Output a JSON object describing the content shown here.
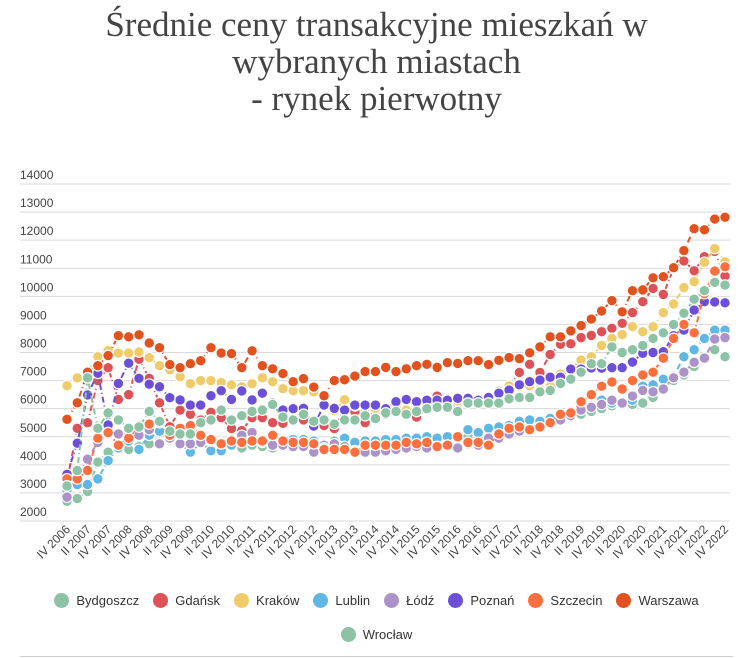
{
  "chart_data": {
    "type": "line",
    "title": [
      "Średnie ceny transakcyjne mieszkań w",
      "wybranych miastach",
      "- rynek pierwotny"
    ],
    "xlabel": "",
    "ylabel": "",
    "ylim": [
      2000,
      14000
    ],
    "yticks": [
      14000,
      13000,
      12000,
      11000,
      10000,
      9000,
      8000,
      7000,
      6000,
      5000,
      4000,
      3000,
      2000
    ],
    "xtick_labels": [
      "IV 2006",
      "II 2007",
      "IV 2007",
      "II 2008",
      "IV 2008",
      "II 2009",
      "IV 2009",
      "II 2010",
      "IV 2010",
      "II 2011",
      "IV 2011",
      "II 2012",
      "IV 2012",
      "II 2013",
      "IV 2013",
      "II 2014",
      "IV 2014",
      "II 2015",
      "IV 2015",
      "II 2016",
      "IV 2016",
      "II 2017",
      "IV 2017",
      "II 2018",
      "IV 2018",
      "II 2019",
      "IV 2019",
      "II 2020",
      "IV 2020",
      "II 2021",
      "IV 2021",
      "II 2022",
      "IV 2022"
    ],
    "x_note": "quarterly points from IV 2006 to IV 2022",
    "grid": true,
    "legend_position": "bottom",
    "series": [
      {
        "name": "Bydgoszcz",
        "color": "#8cc3a5",
        "values": [
          2700,
          2800,
          3050,
          4100,
          4450,
          4600,
          4550,
          4650,
          4750,
          4800,
          4850,
          4800,
          4700,
          4800,
          4850,
          4800,
          4700,
          4600,
          4700,
          4650,
          4600,
          4700,
          4650,
          4700,
          4700,
          4750,
          4850,
          4800,
          4850,
          4700,
          4750,
          4800,
          4800,
          4850,
          4850,
          4900,
          4900,
          4950,
          4950,
          5000,
          5000,
          5000,
          5050,
          5100,
          5200,
          5300,
          5400,
          5500,
          5600,
          5700,
          5800,
          5900,
          6000,
          6100,
          6100,
          6150,
          6200,
          6400,
          6700,
          7000,
          7200,
          7500,
          7800,
          8100,
          7850
        ]
      },
      {
        "name": "Gdańsk",
        "color": "#dd5257",
        "values": [
          3400,
          5300,
          5500,
          7000,
          7460,
          6330,
          6500,
          7760,
          7080,
          6210,
          5360,
          5950,
          5800,
          5600,
          5870,
          5680,
          5290,
          5220,
          5680,
          5680,
          5500,
          5480,
          5600,
          5600,
          5500,
          5400,
          5290,
          6000,
          5900,
          5500,
          5900,
          5800,
          5900,
          5800,
          5700,
          6000,
          6450,
          6200,
          6200,
          6200,
          6300,
          6400,
          6600,
          6800,
          7290,
          7580,
          7290,
          7930,
          8290,
          8310,
          8530,
          8610,
          8740,
          8860,
          9040,
          9420,
          9810,
          10280,
          10070,
          10990,
          11260,
          10910,
          11410,
          11600,
          10720
        ]
      },
      {
        "name": "Kraków",
        "color": "#f0cb69",
        "values": [
          6820,
          7100,
          7300,
          7850,
          8070,
          7980,
          7980,
          8020,
          7820,
          7530,
          7390,
          7140,
          6890,
          7000,
          7000,
          6930,
          6850,
          6780,
          6890,
          7100,
          6960,
          6710,
          6640,
          6640,
          6600,
          6400,
          5930,
          6320,
          6100,
          6000,
          6000,
          5950,
          6050,
          5950,
          5900,
          6100,
          6150,
          6200,
          6280,
          6280,
          6250,
          6200,
          6620,
          6810,
          6790,
          6820,
          6700,
          6800,
          7230,
          7410,
          7730,
          7850,
          8250,
          8500,
          8640,
          8920,
          8740,
          8920,
          9420,
          9730,
          10310,
          10520,
          11210,
          11700,
          11230
        ]
      },
      {
        "name": "Lublin",
        "color": "#5fb7e5",
        "values": [
          3100,
          3300,
          3300,
          3500,
          4150,
          4600,
          4850,
          4550,
          5050,
          5200,
          4900,
          4750,
          4450,
          4800,
          4500,
          4500,
          4700,
          4800,
          4850,
          4800,
          4700,
          4650,
          4900,
          4900,
          4850,
          4700,
          4700,
          4950,
          4800,
          4850,
          4850,
          4900,
          4900,
          4950,
          4950,
          5000,
          4950,
          5000,
          5000,
          5250,
          5150,
          5300,
          5350,
          5400,
          5550,
          5600,
          5550,
          5650,
          5800,
          5900,
          6000,
          6100,
          6300,
          6200,
          6150,
          6300,
          6800,
          6850,
          7050,
          7150,
          7850,
          8100,
          8500,
          8800,
          8800
        ]
      },
      {
        "name": "Łódź",
        "color": "#ab92c9",
        "values": [
          2850,
          3600,
          4200,
          4800,
          5100,
          5100,
          5050,
          5050,
          5250,
          4750,
          4950,
          4750,
          4750,
          4800,
          4850,
          4750,
          4900,
          5050,
          5150,
          4900,
          4700,
          4700,
          4650,
          4650,
          4450,
          4600,
          4750,
          4650,
          4500,
          4450,
          4450,
          4500,
          4550,
          4600,
          4650,
          4600,
          4650,
          4700,
          4600,
          4750,
          4700,
          4950,
          4950,
          5100,
          5200,
          5250,
          5350,
          5450,
          5600,
          5750,
          5950,
          6050,
          6150,
          6300,
          6200,
          6450,
          6650,
          6600,
          6700,
          7100,
          7300,
          7650,
          7800,
          8480,
          8530
        ]
      },
      {
        "name": "Poznań",
        "color": "#6b4fd8",
        "values": [
          3660,
          4770,
          6490,
          7260,
          5420,
          6900,
          7620,
          7080,
          6870,
          6780,
          6390,
          6310,
          6130,
          6130,
          6460,
          6640,
          6330,
          6630,
          6310,
          6550,
          6210,
          5950,
          6000,
          6010,
          5380,
          6130,
          6010,
          5950,
          6130,
          6130,
          6130,
          6000,
          6250,
          6330,
          6250,
          6300,
          6300,
          6300,
          6370,
          6370,
          6300,
          6400,
          6550,
          6660,
          6850,
          6960,
          7020,
          7120,
          7120,
          7410,
          7410,
          7450,
          7440,
          7460,
          7460,
          7660,
          7970,
          8000,
          8030,
          8600,
          8800,
          9510,
          9810,
          9800,
          9770
        ]
      },
      {
        "name": "Szczecin",
        "color": "#ff6e3d",
        "values": [
          3500,
          3500,
          3800,
          4950,
          5150,
          4700,
          4950,
          5400,
          5450,
          5500,
          5050,
          5300,
          5400,
          5050,
          4900,
          4750,
          4850,
          4800,
          4850,
          4850,
          5050,
          4850,
          4800,
          4800,
          4750,
          4550,
          4550,
          4550,
          4450,
          4700,
          4700,
          4700,
          4700,
          4800,
          4750,
          4800,
          4650,
          4700,
          5000,
          4800,
          4800,
          4700,
          5100,
          5300,
          5350,
          5250,
          5350,
          5500,
          5800,
          5850,
          6250,
          6500,
          6800,
          6950,
          6700,
          7000,
          7200,
          7300,
          7800,
          8500,
          9000,
          8700,
          10100,
          10900,
          11050
        ]
      },
      {
        "name": "Warszawa",
        "color": "#e2521f",
        "values": [
          5620,
          6210,
          7300,
          7530,
          7890,
          8600,
          8560,
          8630,
          8340,
          8170,
          7570,
          7460,
          7600,
          7710,
          8170,
          7980,
          7960,
          7460,
          8060,
          7530,
          7420,
          7250,
          6960,
          7070,
          6770,
          6460,
          7000,
          7030,
          7160,
          7320,
          7320,
          7470,
          7320,
          7420,
          7530,
          7580,
          7470,
          7640,
          7610,
          7710,
          7710,
          7570,
          7720,
          7820,
          7780,
          7990,
          8200,
          8560,
          8560,
          8770,
          8960,
          9190,
          9480,
          9850,
          9450,
          10200,
          10230,
          10660,
          10700,
          11020,
          11630,
          12410,
          12370,
          12750,
          12820
        ]
      },
      {
        "name": "Wrocław",
        "color": "#8cc3a5",
        "values": [
          3250,
          3800,
          7100,
          5300,
          5850,
          5600,
          5300,
          5350,
          5900,
          5550,
          5200,
          5100,
          5100,
          5500,
          5600,
          5950,
          5600,
          5750,
          5900,
          5950,
          6150,
          5700,
          5600,
          5800,
          5550,
          5600,
          5450,
          5600,
          5600,
          5750,
          5650,
          5850,
          5900,
          5800,
          5900,
          6000,
          6050,
          6050,
          5900,
          6200,
          6200,
          6200,
          6200,
          6350,
          6400,
          6400,
          6600,
          6650,
          6900,
          7050,
          7300,
          7600,
          7600,
          8200,
          8000,
          8100,
          8250,
          8500,
          8700,
          9000,
          9400,
          9900,
          10200,
          10500,
          10400
        ]
      }
    ]
  }
}
